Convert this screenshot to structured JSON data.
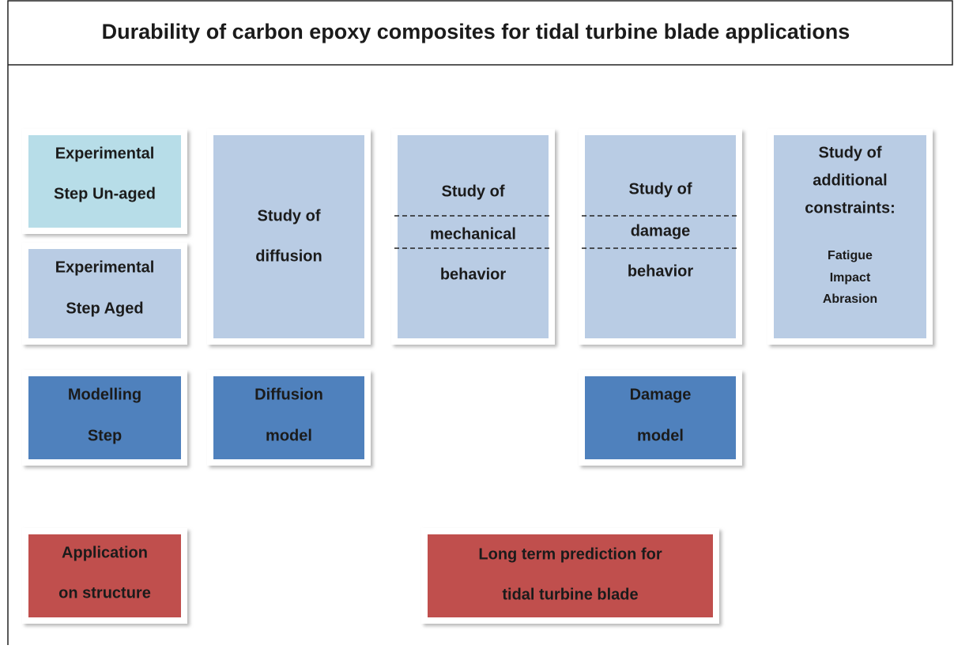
{
  "title": "Durability of carbon epoxy composites for tidal turbine blade applications",
  "boxes": [
    {
      "lines": [
        "Experimental",
        "Step Un-aged"
      ]
    },
    {
      "lines": [
        "Experimental",
        "Step Aged"
      ]
    },
    {
      "lines": [
        "Study of",
        "diffusion"
      ]
    },
    {
      "lines": [
        "Study of",
        "mechanical",
        "behavior"
      ]
    },
    {
      "lines": [
        "Study of",
        "damage",
        "behavior"
      ]
    },
    {
      "lines": [
        "Study of",
        "additional",
        "constraints:"
      ],
      "items": [
        "Fatigue",
        "Impact",
        "Abrasion"
      ]
    },
    {
      "lines": [
        "Modelling",
        "Step"
      ]
    },
    {
      "lines": [
        "Diffusion",
        "model"
      ]
    },
    {
      "lines": [
        "Damage",
        "model"
      ]
    },
    {
      "lines": [
        "Application",
        "on structure"
      ]
    },
    {
      "lines": [
        "Long term prediction for",
        "tidal turbine blade"
      ]
    }
  ]
}
